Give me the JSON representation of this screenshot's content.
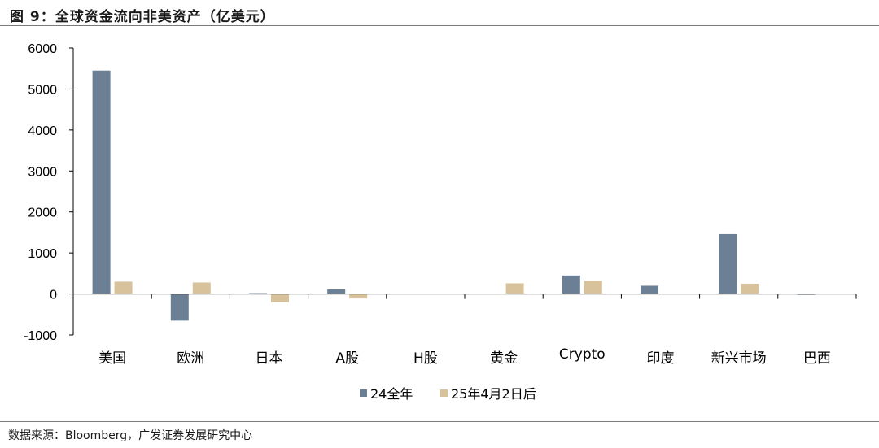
{
  "header": {
    "title": "图 9：全球资金流向非美资产（亿美元）"
  },
  "footer": {
    "source": "数据来源：Bloomberg，广发证券发展研究中心"
  },
  "colors": {
    "series_2024": "#6b7f95",
    "series_2025": "#d8c29c",
    "axis": "#000000"
  },
  "chart_data": {
    "type": "bar",
    "title": "全球资金流向非美资产（亿美元）",
    "categories": [
      "美国",
      "欧洲",
      "日本",
      "A股",
      "H股",
      "黄金",
      "Crypto",
      "印度",
      "新兴市场",
      "巴西"
    ],
    "series": [
      {
        "name": "24全年",
        "values": [
          5450,
          -650,
          20,
          110,
          0,
          0,
          450,
          200,
          1460,
          -20
        ]
      },
      {
        "name": "25年4月2日后",
        "values": [
          300,
          280,
          -200,
          -110,
          0,
          260,
          320,
          0,
          250,
          0
        ]
      }
    ],
    "ylim": [
      -1000,
      6000
    ],
    "yticks": [
      -1000,
      0,
      1000,
      2000,
      3000,
      4000,
      5000,
      6000
    ],
    "xlabel": "",
    "ylabel": "",
    "grid": false,
    "legend_position": "bottom-center"
  }
}
